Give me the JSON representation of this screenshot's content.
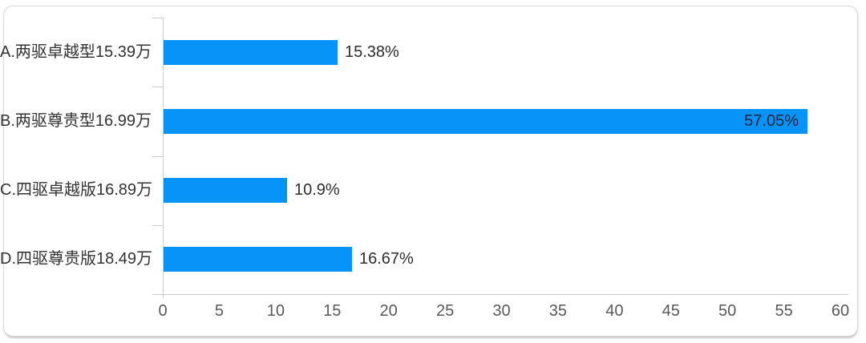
{
  "chart_data": {
    "type": "bar",
    "orientation": "horizontal",
    "title": "",
    "xlabel": "",
    "ylabel": "",
    "categories": [
      "A.两驱卓越型15.39万",
      "B.两驱尊贵型16.99万",
      "C.四驱卓越版16.89万",
      "D.四驱尊贵版18.49万"
    ],
    "values": [
      15.38,
      57.05,
      10.9,
      16.67
    ],
    "value_labels": [
      "15.38%",
      "57.05%",
      "10.9%",
      "16.67%"
    ],
    "xlim": [
      0,
      60
    ],
    "x_ticks": [
      "0",
      "5",
      "10",
      "15",
      "20",
      "25",
      "30",
      "35",
      "40",
      "45",
      "50",
      "55",
      "60"
    ],
    "grid": false,
    "legend": false,
    "colors": {
      "bar": "#0793f7",
      "axis": "#cccccc",
      "category_label": "#333333",
      "value_label_outside": "#2e2e2e",
      "value_label_inside": "#1c2742",
      "tick_label": "#595959",
      "card_border": "#d5d5d5",
      "background": "#ffffff"
    }
  }
}
